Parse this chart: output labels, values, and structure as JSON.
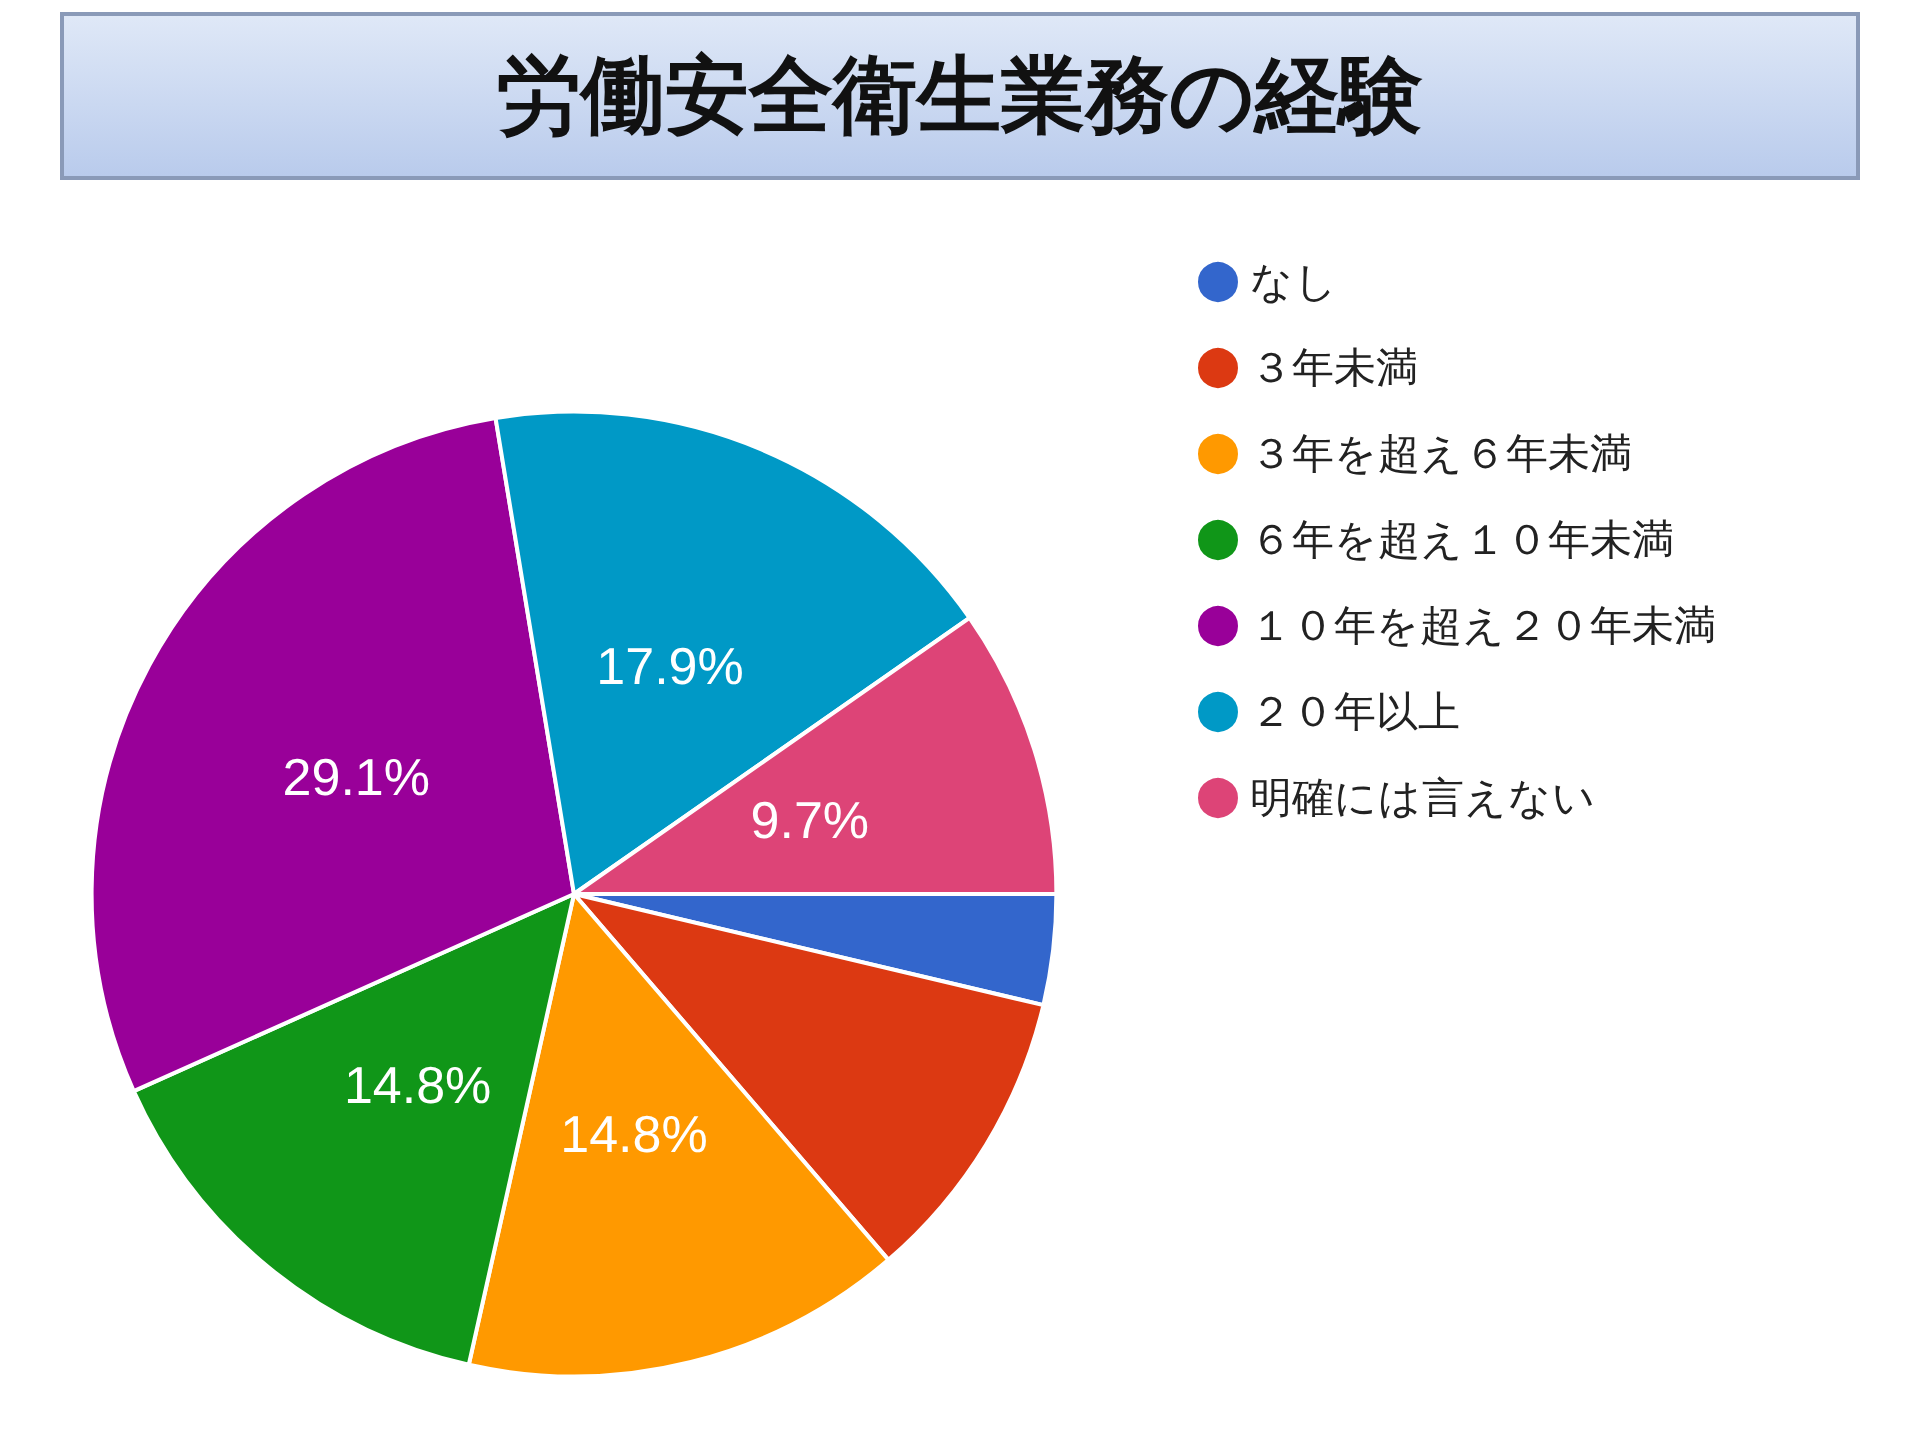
{
  "chart_data": {
    "type": "pie",
    "title": "労働安全衛生業務の経験",
    "categories": [
      "なし",
      "３年未満",
      "３年を超え６年未満",
      "６年を超え１０年未満",
      "１０年を超え２０年未満",
      "２０年以上",
      "明確には言えない"
    ],
    "values": [
      3.7,
      10.0,
      14.8,
      14.8,
      29.1,
      17.9,
      9.7
    ],
    "colors": [
      "#3366cc",
      "#dc3912",
      "#ff9900",
      "#109618",
      "#990099",
      "#0099c6",
      "#dd4477"
    ],
    "value_labels": [
      null,
      null,
      "14.8%",
      "14.8%",
      "29.1%",
      "17.9%",
      "9.7%"
    ],
    "legend": "right"
  }
}
